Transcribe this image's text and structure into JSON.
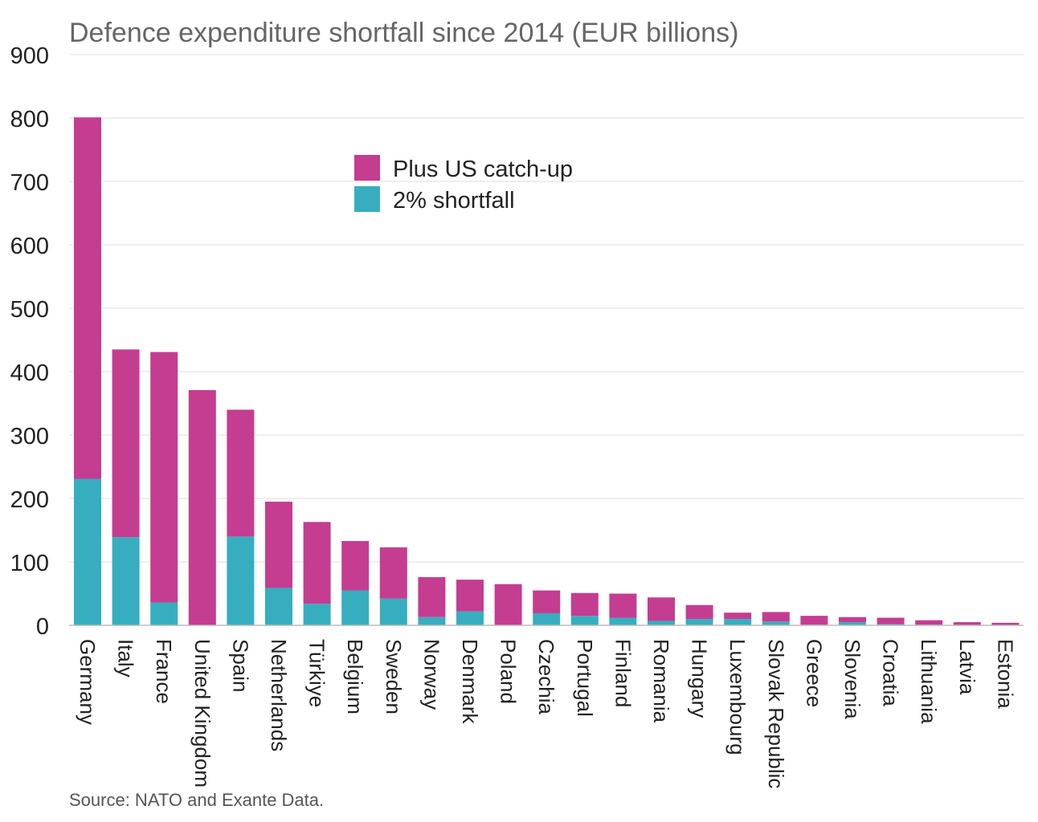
{
  "chart_data": {
    "type": "bar",
    "stacked": true,
    "title": "Defence expenditure shortfall since 2014 (EUR billions)",
    "xlabel": "",
    "ylabel": "",
    "ylim": [
      0,
      900
    ],
    "yticks": [
      0,
      100,
      200,
      300,
      400,
      500,
      600,
      700,
      800,
      900
    ],
    "grid": true,
    "legend_position": "top-center",
    "categories": [
      "Germany",
      "Italy",
      "France",
      "United Kingdom",
      "Spain",
      "Netherlands",
      "Türkiye",
      "Belgium",
      "Sweden",
      "Norway",
      "Denmark",
      "Poland",
      "Czechia",
      "Portugal",
      "Finland",
      "Romania",
      "Hungary",
      "Luxembourg",
      "Slovak Republic",
      "Greece",
      "Slovenia",
      "Croatia",
      "Lithuania",
      "Latvia",
      "Estonia"
    ],
    "series": [
      {
        "name": "2% shortfall",
        "color": "#36aebf",
        "values": [
          231,
          139,
          36,
          0,
          140,
          59,
          34,
          55,
          42,
          13,
          22,
          0,
          19,
          15,
          12,
          7,
          10,
          10,
          6,
          1,
          5,
          2,
          1,
          0,
          0
        ]
      },
      {
        "name": "Plus US catch-up",
        "color": "#c43d91",
        "values": [
          570,
          296,
          395,
          371,
          200,
          136,
          129,
          78,
          81,
          63,
          50,
          65,
          36,
          36,
          38,
          37,
          22,
          10,
          15,
          14,
          8,
          10,
          7,
          5,
          4
        ]
      }
    ],
    "source": "Source: NATO and Exante Data."
  }
}
